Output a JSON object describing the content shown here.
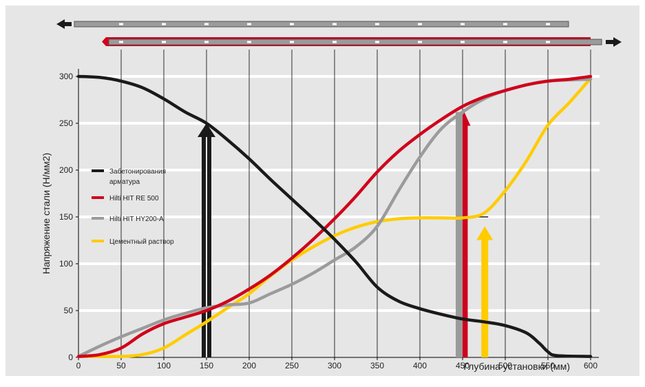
{
  "chart_data": {
    "type": "line",
    "xlabel": "Глубина установки (мм)",
    "ylabel": "Напряжение стали (Н/мм2)",
    "xlim": [
      0,
      600
    ],
    "ylim": [
      0,
      300
    ],
    "xticks": [
      0,
      50,
      100,
      150,
      200,
      250,
      300,
      350,
      400,
      450,
      500,
      550,
      600
    ],
    "yticks": [
      0,
      50,
      100,
      150,
      200,
      250,
      300
    ],
    "grid": "vertical-lines-and-horizontal-bands",
    "legend_position": "left-middle",
    "colors": {
      "background": "#e6e6e6",
      "black": "#1a1a1a",
      "red": "#d0021b",
      "gray": "#9b9b9b",
      "yellow": "#ffcc00",
      "grid_band": "#ffffff"
    },
    "series": [
      {
        "name": "Забетонирования арматура",
        "color": "#1a1a1a",
        "x": [
          0,
          25,
          50,
          75,
          100,
          125,
          150,
          175,
          200,
          225,
          250,
          275,
          300,
          325,
          350,
          375,
          400,
          425,
          450,
          475,
          500,
          525,
          540,
          550,
          560,
          600
        ],
        "y": [
          300,
          299,
          295,
          288,
          276,
          262,
          250,
          232,
          212,
          190,
          169,
          148,
          126,
          102,
          75,
          60,
          52,
          46,
          41,
          38,
          34,
          26,
          15,
          6,
          2,
          1
        ]
      },
      {
        "name": "Hilti HIT RE 500",
        "color": "#d0021b",
        "x": [
          0,
          25,
          50,
          75,
          100,
          125,
          150,
          175,
          200,
          225,
          250,
          275,
          300,
          325,
          350,
          375,
          400,
          425,
          450,
          475,
          500,
          525,
          550,
          575,
          600
        ],
        "y": [
          1,
          3,
          10,
          25,
          36,
          43,
          50,
          60,
          73,
          88,
          106,
          126,
          148,
          172,
          198,
          220,
          238,
          254,
          268,
          278,
          285,
          291,
          295,
          297,
          300
        ]
      },
      {
        "name": "Hilti HIT HY200-A",
        "color": "#9b9b9b",
        "x": [
          0,
          25,
          50,
          75,
          100,
          125,
          150,
          175,
          200,
          225,
          250,
          275,
          300,
          325,
          350,
          375,
          400,
          425,
          450,
          475,
          500,
          525,
          550,
          600
        ],
        "y": [
          1,
          12,
          22,
          31,
          40,
          47,
          53,
          56,
          58,
          68,
          78,
          90,
          104,
          118,
          140,
          178,
          214,
          244,
          262,
          276,
          285,
          291,
          295,
          297
        ]
      },
      {
        "name": "Цементный раствор",
        "color": "#ffcc00",
        "x": [
          0,
          25,
          50,
          75,
          100,
          125,
          150,
          175,
          200,
          225,
          250,
          275,
          300,
          325,
          350,
          375,
          400,
          425,
          450,
          475,
          500,
          525,
          550,
          575,
          600
        ],
        "y": [
          1,
          1,
          1,
          3,
          10,
          24,
          38,
          53,
          68,
          87,
          104,
          118,
          130,
          139,
          145,
          148,
          149,
          149,
          149,
          154,
          178,
          210,
          248,
          272,
          298
        ]
      }
    ],
    "annotations": [
      {
        "type": "arrow",
        "color": "#1a1a1a",
        "x": 150,
        "y_from": 0,
        "y_to": 250
      },
      {
        "type": "arrow",
        "color": "#d0021b",
        "x": 452,
        "y_from": 0,
        "y_to": 262
      },
      {
        "type": "bar",
        "color": "#9b9b9b",
        "x": 446,
        "y_from": 0,
        "y_to": 262
      },
      {
        "type": "arrow",
        "color": "#ffcc00",
        "x": 476,
        "y_from": 0,
        "y_to": 140
      }
    ],
    "reference_lines": [
      {
        "color": "#1a1a1a",
        "y": 150,
        "x_from": 450,
        "x_to": 480
      }
    ]
  }
}
